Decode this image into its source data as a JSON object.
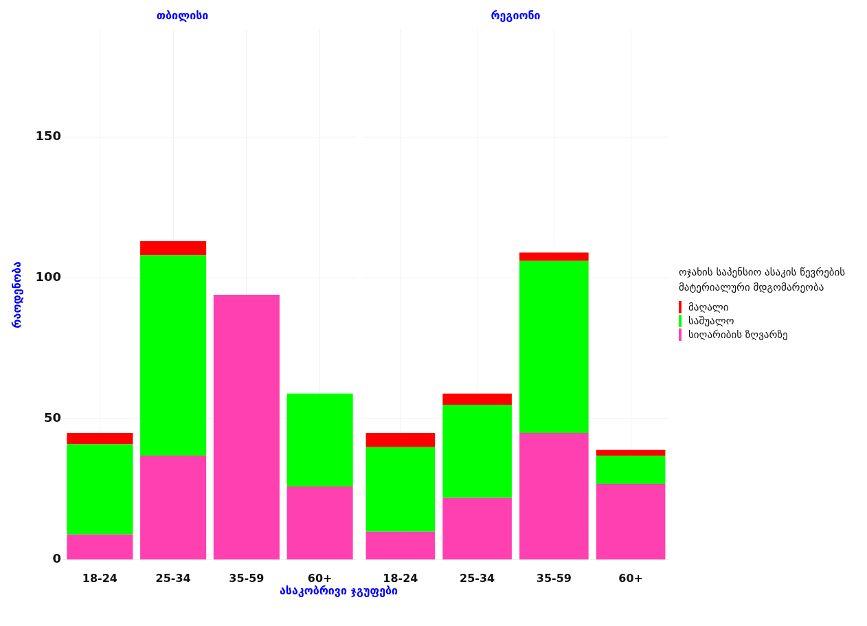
{
  "chart_data": [
    {
      "type": "bar",
      "title": "თბილისი",
      "ylabel": "რაოდენობა",
      "xlabel": "ასაკობრივი ჯგუფები",
      "categories": [
        "18-24",
        "25-34",
        "35-59",
        "60+"
      ],
      "stacked": true,
      "ylim": [
        0,
        188
      ],
      "yticks": [
        0,
        50,
        100,
        150
      ],
      "grid": true,
      "legend": false,
      "series": [
        {
          "color": "#ff40b0",
          "values": [
            9,
            37,
            94,
            26
          ]
        },
        {
          "color": "#00ff00",
          "values": [
            32,
            71,
            0,
            33
          ]
        },
        {
          "color": "#ff0000",
          "values": [
            4,
            5,
            0,
            0
          ]
        }
      ]
    },
    {
      "type": "bar",
      "title": "რეგიონი",
      "categories": [
        "18-24",
        "25-34",
        "35-59",
        "60+"
      ],
      "stacked": true,
      "ylim": [
        0,
        188
      ],
      "yticks": [
        0,
        50,
        100,
        150
      ],
      "grid": true,
      "tick_labels": "x",
      "legend": "right",
      "legend_title": "ოჯახის საპენსიო ასაკის წევრების მატერიალური მდგომარეობა",
      "series": [
        {
          "name": "სიღარიბის ზღვარზე",
          "color": "#ff40b0",
          "values": [
            10,
            22,
            45,
            27
          ]
        },
        {
          "name": "საშუალო",
          "color": "#00ff00",
          "values": [
            30,
            33,
            61,
            10
          ]
        },
        {
          "name": "მაღალი",
          "color": "#ff0000",
          "values": [
            5,
            4,
            3,
            2
          ]
        }
      ]
    }
  ]
}
